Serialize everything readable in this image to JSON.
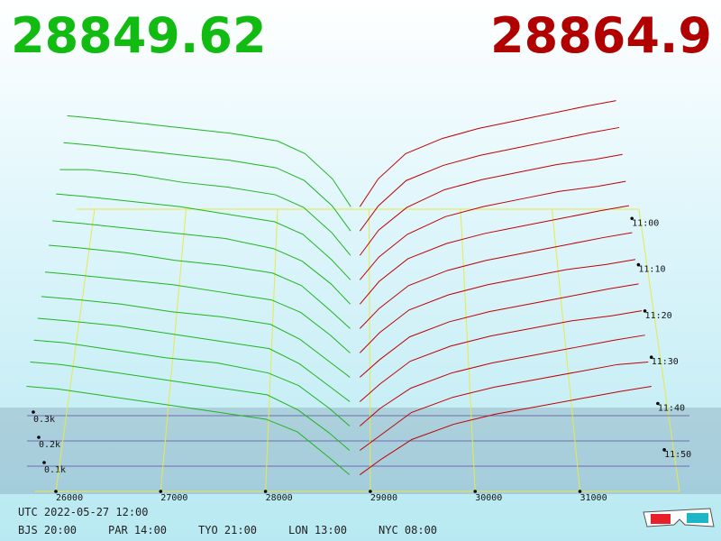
{
  "header": {
    "bid_price": "28849.62",
    "ask_price": "28864.9"
  },
  "chart_data": {
    "type": "depth3d",
    "bid_color": "#1fb51f",
    "ask_color": "#c00000",
    "bid_prices": [
      25700,
      26000,
      26500,
      27000,
      27500,
      28000,
      28300,
      28600,
      28800
    ],
    "ask_prices": [
      28900,
      29100,
      29400,
      29800,
      30200,
      30600,
      31000,
      31400,
      31700
    ],
    "bids": [
      [
        0.37,
        0.36,
        0.34,
        0.32,
        0.3,
        0.27,
        0.22,
        0.12,
        0.01
      ],
      [
        0.36,
        0.35,
        0.33,
        0.31,
        0.29,
        0.26,
        0.21,
        0.11,
        0.01
      ],
      [
        0.35,
        0.35,
        0.33,
        0.3,
        0.28,
        0.25,
        0.2,
        0.1,
        0.01
      ],
      [
        0.35,
        0.34,
        0.32,
        0.3,
        0.27,
        0.24,
        0.19,
        0.09,
        0.01
      ],
      [
        0.34,
        0.33,
        0.31,
        0.29,
        0.27,
        0.23,
        0.18,
        0.09,
        0.01
      ],
      [
        0.34,
        0.33,
        0.31,
        0.28,
        0.26,
        0.23,
        0.18,
        0.08,
        0.01
      ],
      [
        0.33,
        0.32,
        0.3,
        0.28,
        0.25,
        0.22,
        0.17,
        0.08,
        0.01
      ],
      [
        0.33,
        0.32,
        0.3,
        0.27,
        0.25,
        0.22,
        0.16,
        0.07,
        0.01
      ],
      [
        0.34,
        0.33,
        0.31,
        0.28,
        0.25,
        0.22,
        0.16,
        0.07,
        0.01
      ],
      [
        0.35,
        0.34,
        0.31,
        0.28,
        0.26,
        0.22,
        0.17,
        0.08,
        0.01
      ],
      [
        0.36,
        0.35,
        0.32,
        0.29,
        0.26,
        0.23,
        0.17,
        0.08,
        0.01
      ],
      [
        0.36,
        0.35,
        0.32,
        0.29,
        0.26,
        0.23,
        0.18,
        0.08,
        0.01
      ]
    ],
    "asks": [
      [
        0.01,
        0.12,
        0.22,
        0.28,
        0.32,
        0.35,
        0.38,
        0.41,
        0.43
      ],
      [
        0.01,
        0.11,
        0.21,
        0.27,
        0.31,
        0.34,
        0.37,
        0.4,
        0.42
      ],
      [
        0.01,
        0.11,
        0.2,
        0.27,
        0.31,
        0.34,
        0.37,
        0.39,
        0.41
      ],
      [
        0.01,
        0.1,
        0.19,
        0.26,
        0.3,
        0.33,
        0.36,
        0.38,
        0.4
      ],
      [
        0.01,
        0.1,
        0.19,
        0.25,
        0.29,
        0.32,
        0.35,
        0.38,
        0.4
      ],
      [
        0.01,
        0.09,
        0.18,
        0.24,
        0.28,
        0.31,
        0.34,
        0.37,
        0.39
      ],
      [
        0.01,
        0.09,
        0.18,
        0.24,
        0.28,
        0.31,
        0.34,
        0.36,
        0.38
      ],
      [
        0.01,
        0.08,
        0.17,
        0.23,
        0.27,
        0.3,
        0.33,
        0.36,
        0.38
      ],
      [
        0.01,
        0.08,
        0.17,
        0.23,
        0.27,
        0.3,
        0.33,
        0.35,
        0.37
      ],
      [
        0.01,
        0.08,
        0.16,
        0.22,
        0.26,
        0.29,
        0.32,
        0.35,
        0.37
      ],
      [
        0.01,
        0.07,
        0.16,
        0.22,
        0.26,
        0.29,
        0.32,
        0.35,
        0.36
      ],
      [
        0.01,
        0.07,
        0.15,
        0.21,
        0.25,
        0.28,
        0.31,
        0.34,
        0.36
      ]
    ],
    "xticks": [
      26000,
      27000,
      28000,
      29000,
      30000,
      31000
    ],
    "time_lim": [
      658,
      719
    ],
    "time_ticks": [
      {
        "value": 660,
        "label": "11:00"
      },
      {
        "value": 670,
        "label": "11:10"
      },
      {
        "value": 680,
        "label": "11:20"
      },
      {
        "value": 690,
        "label": "11:30"
      },
      {
        "value": 700,
        "label": "11:40"
      },
      {
        "value": 710,
        "label": "11:50"
      }
    ],
    "depth_ticks": [
      {
        "value": 0.3,
        "label": "0.3k"
      },
      {
        "value": 0.2,
        "label": "0.2k"
      },
      {
        "value": 0.1,
        "label": "0.1k"
      }
    ]
  },
  "footer": {
    "utc": "UTC 2022-05-27 12:00",
    "zones": [
      "BJS 20:00",
      "PAR 14:00",
      "TYO 21:00",
      "LON 13:00",
      "NYC 08:00"
    ]
  }
}
